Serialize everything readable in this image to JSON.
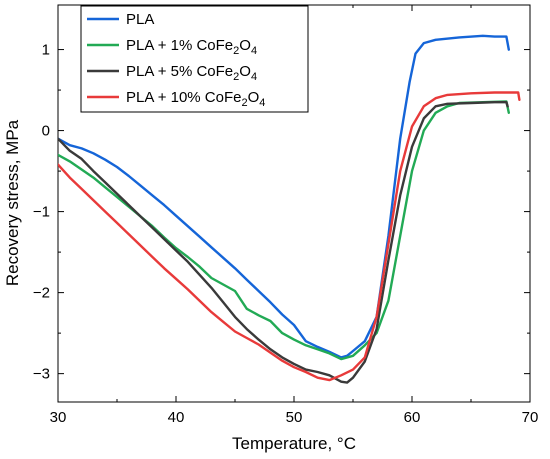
{
  "chart_data": {
    "type": "line",
    "title": "",
    "xlabel": "Temperature, °C",
    "ylabel": "Recovery stress, MPa",
    "xlim": [
      30,
      70
    ],
    "ylim": [
      -3.35,
      1.55
    ],
    "x_ticks": [
      30,
      40,
      50,
      60,
      70
    ],
    "y_ticks": [
      -3,
      -2,
      -1,
      0,
      1
    ],
    "grid": false,
    "legend_position": "top-left",
    "series": [
      {
        "name": "PLA",
        "name_parts": [
          "PLA"
        ],
        "color": "#1565d8",
        "points": [
          [
            30,
            -0.1
          ],
          [
            31,
            -0.18
          ],
          [
            32,
            -0.22
          ],
          [
            33,
            -0.28
          ],
          [
            34,
            -0.36
          ],
          [
            35,
            -0.45
          ],
          [
            36,
            -0.56
          ],
          [
            37,
            -0.68
          ],
          [
            38,
            -0.8
          ],
          [
            39,
            -0.92
          ],
          [
            40,
            -1.05
          ],
          [
            41,
            -1.18
          ],
          [
            42,
            -1.31
          ],
          [
            43,
            -1.44
          ],
          [
            44,
            -1.57
          ],
          [
            45,
            -1.7
          ],
          [
            46,
            -1.84
          ],
          [
            47,
            -1.98
          ],
          [
            48,
            -2.12
          ],
          [
            49,
            -2.27
          ],
          [
            50,
            -2.4
          ],
          [
            51,
            -2.6
          ],
          [
            52,
            -2.67
          ],
          [
            53,
            -2.73
          ],
          [
            54,
            -2.8
          ],
          [
            54.5,
            -2.78
          ],
          [
            55,
            -2.72
          ],
          [
            56,
            -2.6
          ],
          [
            57,
            -2.3
          ],
          [
            58,
            -1.3
          ],
          [
            59,
            -0.1
          ],
          [
            59.8,
            0.6
          ],
          [
            60.3,
            0.95
          ],
          [
            61,
            1.08
          ],
          [
            62,
            1.12
          ],
          [
            64,
            1.15
          ],
          [
            66,
            1.17
          ],
          [
            67,
            1.16
          ],
          [
            68,
            1.16
          ],
          [
            68.2,
            1.0
          ]
        ]
      },
      {
        "name": "PLA + 1% CoFe2O4",
        "name_parts": [
          "PLA + 1% CoFe",
          "2",
          "O",
          "4"
        ],
        "color": "#22aa55",
        "points": [
          [
            30,
            -0.3
          ],
          [
            31,
            -0.38
          ],
          [
            32,
            -0.48
          ],
          [
            33,
            -0.58
          ],
          [
            34,
            -0.7
          ],
          [
            35,
            -0.82
          ],
          [
            36,
            -0.94
          ],
          [
            37,
            -1.06
          ],
          [
            38,
            -1.18
          ],
          [
            39,
            -1.32
          ],
          [
            40,
            -1.45
          ],
          [
            41,
            -1.56
          ],
          [
            42,
            -1.68
          ],
          [
            43,
            -1.82
          ],
          [
            44,
            -1.9
          ],
          [
            45,
            -1.98
          ],
          [
            46,
            -2.2
          ],
          [
            47,
            -2.28
          ],
          [
            48,
            -2.35
          ],
          [
            49,
            -2.5
          ],
          [
            50,
            -2.58
          ],
          [
            51,
            -2.65
          ],
          [
            52,
            -2.7
          ],
          [
            53,
            -2.75
          ],
          [
            54,
            -2.82
          ],
          [
            55,
            -2.78
          ],
          [
            56,
            -2.65
          ],
          [
            57,
            -2.5
          ],
          [
            58,
            -2.1
          ],
          [
            59,
            -1.3
          ],
          [
            60,
            -0.5
          ],
          [
            61,
            0.0
          ],
          [
            62,
            0.22
          ],
          [
            63,
            0.3
          ],
          [
            64,
            0.34
          ],
          [
            66,
            0.35
          ],
          [
            68,
            0.36
          ],
          [
            68.2,
            0.22
          ]
        ]
      },
      {
        "name": "PLA + 5% CoFe2O4",
        "name_parts": [
          "PLA + 5% CoFe",
          "2",
          "O",
          "4"
        ],
        "color": "#3a3a3a",
        "points": [
          [
            30,
            -0.1
          ],
          [
            31,
            -0.25
          ],
          [
            32,
            -0.35
          ],
          [
            33,
            -0.5
          ],
          [
            34,
            -0.64
          ],
          [
            35,
            -0.78
          ],
          [
            36,
            -0.92
          ],
          [
            37,
            -1.06
          ],
          [
            38,
            -1.2
          ],
          [
            39,
            -1.34
          ],
          [
            40,
            -1.48
          ],
          [
            41,
            -1.62
          ],
          [
            42,
            -1.78
          ],
          [
            43,
            -1.94
          ],
          [
            44,
            -2.12
          ],
          [
            45,
            -2.3
          ],
          [
            46,
            -2.45
          ],
          [
            47,
            -2.58
          ],
          [
            48,
            -2.7
          ],
          [
            49,
            -2.8
          ],
          [
            50,
            -2.88
          ],
          [
            51,
            -2.95
          ],
          [
            52,
            -2.98
          ],
          [
            53,
            -3.02
          ],
          [
            54,
            -3.1
          ],
          [
            54.5,
            -3.11
          ],
          [
            55,
            -3.05
          ],
          [
            56,
            -2.85
          ],
          [
            57,
            -2.45
          ],
          [
            58,
            -1.6
          ],
          [
            59,
            -0.8
          ],
          [
            60,
            -0.2
          ],
          [
            61,
            0.15
          ],
          [
            62,
            0.3
          ],
          [
            63,
            0.33
          ],
          [
            65,
            0.34
          ],
          [
            67,
            0.35
          ],
          [
            68,
            0.35
          ],
          [
            68.1,
            0.3
          ]
        ]
      },
      {
        "name": "PLA + 10% CoFe2O4",
        "name_parts": [
          "PLA + 10% CoFe",
          "2",
          "O",
          "4"
        ],
        "color": "#e83a3a",
        "points": [
          [
            30,
            -0.42
          ],
          [
            31,
            -0.58
          ],
          [
            32,
            -0.72
          ],
          [
            33,
            -0.86
          ],
          [
            34,
            -1.0
          ],
          [
            35,
            -1.14
          ],
          [
            36,
            -1.28
          ],
          [
            37,
            -1.42
          ],
          [
            38,
            -1.56
          ],
          [
            39,
            -1.7
          ],
          [
            40,
            -1.83
          ],
          [
            41,
            -1.96
          ],
          [
            42,
            -2.1
          ],
          [
            43,
            -2.24
          ],
          [
            44,
            -2.36
          ],
          [
            45,
            -2.48
          ],
          [
            46,
            -2.56
          ],
          [
            47,
            -2.64
          ],
          [
            48,
            -2.74
          ],
          [
            49,
            -2.84
          ],
          [
            50,
            -2.92
          ],
          [
            51,
            -2.98
          ],
          [
            52,
            -3.05
          ],
          [
            53,
            -3.08
          ],
          [
            54,
            -3.02
          ],
          [
            55,
            -2.95
          ],
          [
            56,
            -2.8
          ],
          [
            57,
            -2.3
          ],
          [
            58,
            -1.4
          ],
          [
            59,
            -0.5
          ],
          [
            60,
            0.05
          ],
          [
            61,
            0.3
          ],
          [
            62,
            0.4
          ],
          [
            63,
            0.44
          ],
          [
            65,
            0.46
          ],
          [
            67,
            0.47
          ],
          [
            68,
            0.47
          ],
          [
            69,
            0.47
          ],
          [
            69.1,
            0.38
          ]
        ]
      }
    ]
  }
}
